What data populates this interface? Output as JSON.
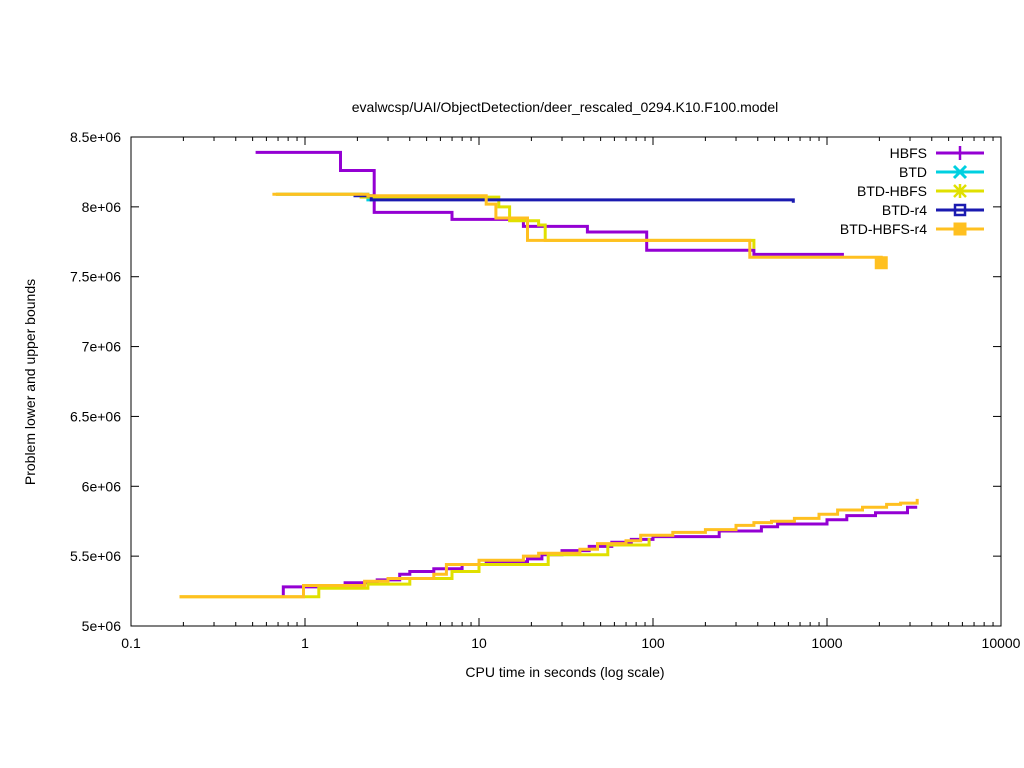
{
  "chart_data": {
    "type": "line",
    "title": "evalwcsp/UAI/ObjectDetection/deer_rescaled_0294.K10.F100.model",
    "xlabel": "CPU time in seconds (log scale)",
    "ylabel": "Problem lower and upper bounds",
    "xscale": "log",
    "xlim": [
      0.1,
      10000
    ],
    "ylim": [
      5000000,
      8500000
    ],
    "x_ticks": [
      0.1,
      1,
      10,
      100,
      1000,
      10000
    ],
    "x_tick_labels": [
      "0.1",
      "1",
      "10",
      "100",
      "1000",
      "10000"
    ],
    "y_ticks": [
      5000000,
      5500000,
      6000000,
      6500000,
      7000000,
      7500000,
      8000000,
      8500000
    ],
    "y_tick_labels": [
      "5e+06",
      "5.5e+06",
      "6e+06",
      "6.5e+06",
      "7e+06",
      "7.5e+06",
      "8e+06",
      "8.5e+06"
    ],
    "grid": false,
    "legend_position": "top-right",
    "series": [
      {
        "name": "HBFS",
        "color": "#9400d3",
        "marker": "plus",
        "upper": [
          [
            0.52,
            8390000
          ],
          [
            1.6,
            8390000
          ],
          [
            1.6,
            8260000
          ],
          [
            2.5,
            8260000
          ],
          [
            2.5,
            7960000
          ],
          [
            7.0,
            7960000
          ],
          [
            7.0,
            7910000
          ],
          [
            18.0,
            7910000
          ],
          [
            18.0,
            7860000
          ],
          [
            42.0,
            7860000
          ],
          [
            42.0,
            7820000
          ],
          [
            92.0,
            7820000
          ],
          [
            92.0,
            7690000
          ],
          [
            380.0,
            7690000
          ],
          [
            380.0,
            7660000
          ],
          [
            1250.0,
            7660000
          ]
        ],
        "lower": [
          [
            0.75,
            5210000
          ],
          [
            0.75,
            5280000
          ],
          [
            1.7,
            5280000
          ],
          [
            1.7,
            5310000
          ],
          [
            2.6,
            5310000
          ],
          [
            2.6,
            5330000
          ],
          [
            3.5,
            5330000
          ],
          [
            3.5,
            5370000
          ],
          [
            4.0,
            5370000
          ],
          [
            4.0,
            5390000
          ],
          [
            5.5,
            5390000
          ],
          [
            5.5,
            5410000
          ],
          [
            8.0,
            5410000
          ],
          [
            8.0,
            5440000
          ],
          [
            11.0,
            5440000
          ],
          [
            11.0,
            5460000
          ],
          [
            19.0,
            5460000
          ],
          [
            19.0,
            5480000
          ],
          [
            23.0,
            5480000
          ],
          [
            23.0,
            5510000
          ],
          [
            30.0,
            5510000
          ],
          [
            30.0,
            5540000
          ],
          [
            43.0,
            5540000
          ],
          [
            43.0,
            5570000
          ],
          [
            58.0,
            5570000
          ],
          [
            58.0,
            5600000
          ],
          [
            75.0,
            5600000
          ],
          [
            75.0,
            5620000
          ],
          [
            100.0,
            5620000
          ],
          [
            100.0,
            5640000
          ],
          [
            240.0,
            5640000
          ],
          [
            240.0,
            5680000
          ],
          [
            420.0,
            5680000
          ],
          [
            420.0,
            5710000
          ],
          [
            520.0,
            5710000
          ],
          [
            520.0,
            5730000
          ],
          [
            1000.0,
            5730000
          ],
          [
            1000.0,
            5760000
          ],
          [
            1300.0,
            5760000
          ],
          [
            1300.0,
            5790000
          ],
          [
            1900.0,
            5790000
          ],
          [
            1900.0,
            5810000
          ],
          [
            2900.0,
            5810000
          ],
          [
            2900.0,
            5850000
          ],
          [
            3300.0,
            5850000
          ]
        ]
      },
      {
        "name": "BTD",
        "color": "#00d0e0",
        "marker": "cross",
        "upper": [
          [
            0.68,
            8090000
          ],
          [
            2.3,
            8090000
          ],
          [
            2.3,
            8050000
          ],
          [
            2.5,
            8050000
          ]
        ],
        "lower": []
      },
      {
        "name": "BTD-HBFS",
        "color": "#e0e000",
        "marker": "star",
        "upper": [
          [
            0.68,
            8090000
          ],
          [
            2.1,
            8090000
          ],
          [
            2.1,
            8070000
          ],
          [
            13.0,
            8070000
          ],
          [
            13.0,
            8000000
          ],
          [
            15.0,
            8000000
          ],
          [
            15.0,
            7900000
          ],
          [
            22.0,
            7900000
          ],
          [
            22.0,
            7870000
          ],
          [
            24.0,
            7870000
          ],
          [
            24.0,
            7760000
          ],
          [
            380.0,
            7760000
          ],
          [
            380.0,
            7700000
          ]
        ],
        "lower": [
          [
            0.19,
            5210000
          ],
          [
            1.2,
            5210000
          ],
          [
            1.2,
            5270000
          ],
          [
            2.3,
            5270000
          ],
          [
            2.3,
            5300000
          ],
          [
            4.0,
            5300000
          ],
          [
            4.0,
            5340000
          ],
          [
            7.0,
            5340000
          ],
          [
            7.0,
            5390000
          ],
          [
            10.0,
            5390000
          ],
          [
            10.0,
            5440000
          ],
          [
            25.0,
            5440000
          ],
          [
            25.0,
            5510000
          ],
          [
            55.0,
            5510000
          ],
          [
            55.0,
            5580000
          ],
          [
            95.0,
            5580000
          ],
          [
            95.0,
            5630000
          ]
        ]
      },
      {
        "name": "BTD-r4",
        "color": "#1a1ab0",
        "marker": "square",
        "upper": [
          [
            1.9,
            8080000
          ],
          [
            2.4,
            8080000
          ],
          [
            2.4,
            8050000
          ],
          [
            640.0,
            8050000
          ],
          [
            640.0,
            8030000
          ]
        ],
        "lower": []
      },
      {
        "name": "BTD-HBFS-r4",
        "color": "#ffc020",
        "marker": "filled-square",
        "upper": [
          [
            0.65,
            8090000
          ],
          [
            2.3,
            8090000
          ],
          [
            2.3,
            8080000
          ],
          [
            11.0,
            8080000
          ],
          [
            11.0,
            8020000
          ],
          [
            12.5,
            8020000
          ],
          [
            12.5,
            7920000
          ],
          [
            19.0,
            7920000
          ],
          [
            19.0,
            7760000
          ],
          [
            360.0,
            7760000
          ],
          [
            360.0,
            7640000
          ],
          [
            2050.0,
            7640000
          ],
          [
            2050.0,
            7600000
          ]
        ],
        "lower": [
          [
            0.19,
            5210000
          ],
          [
            0.98,
            5210000
          ],
          [
            0.98,
            5290000
          ],
          [
            2.2,
            5290000
          ],
          [
            2.2,
            5320000
          ],
          [
            3.0,
            5320000
          ],
          [
            3.0,
            5340000
          ],
          [
            5.5,
            5340000
          ],
          [
            5.5,
            5370000
          ],
          [
            6.5,
            5370000
          ],
          [
            6.5,
            5440000
          ],
          [
            10.0,
            5440000
          ],
          [
            10.0,
            5470000
          ],
          [
            18.0,
            5470000
          ],
          [
            18.0,
            5500000
          ],
          [
            22.0,
            5500000
          ],
          [
            22.0,
            5520000
          ],
          [
            38.0,
            5520000
          ],
          [
            38.0,
            5550000
          ],
          [
            48.0,
            5550000
          ],
          [
            48.0,
            5590000
          ],
          [
            70.0,
            5590000
          ],
          [
            70.0,
            5610000
          ],
          [
            85.0,
            5610000
          ],
          [
            85.0,
            5650000
          ],
          [
            130.0,
            5650000
          ],
          [
            130.0,
            5670000
          ],
          [
            200.0,
            5670000
          ],
          [
            200.0,
            5690000
          ],
          [
            300.0,
            5690000
          ],
          [
            300.0,
            5720000
          ],
          [
            380.0,
            5720000
          ],
          [
            380.0,
            5740000
          ],
          [
            480.0,
            5740000
          ],
          [
            480.0,
            5750000
          ],
          [
            650.0,
            5750000
          ],
          [
            650.0,
            5770000
          ],
          [
            900.0,
            5770000
          ],
          [
            900.0,
            5800000
          ],
          [
            1150.0,
            5800000
          ],
          [
            1150.0,
            5830000
          ],
          [
            1600.0,
            5830000
          ],
          [
            1600.0,
            5850000
          ],
          [
            2200.0,
            5850000
          ],
          [
            2200.0,
            5870000
          ],
          [
            2650.0,
            5870000
          ],
          [
            2650.0,
            5880000
          ],
          [
            3300.0,
            5880000
          ],
          [
            3300.0,
            5910000
          ]
        ]
      }
    ]
  }
}
